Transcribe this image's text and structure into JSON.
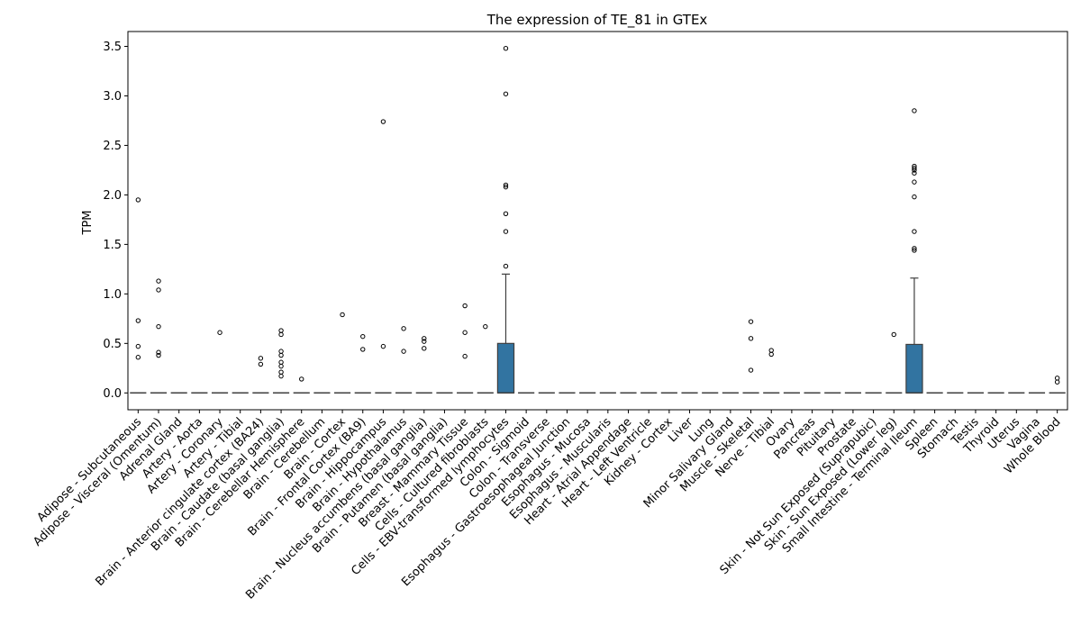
{
  "chart_data": {
    "type": "box",
    "title": "The expression of TE_81 in GTEx",
    "xlabel": "",
    "ylabel": "TPM",
    "ylim": [
      -0.17,
      3.65
    ],
    "yticks": [
      0.0,
      0.5,
      1.0,
      1.5,
      2.0,
      2.5,
      3.0,
      3.5
    ],
    "ytick_labels": [
      "0.0",
      "0.5",
      "1.0",
      "1.5",
      "2.0",
      "2.5",
      "3.0",
      "3.5"
    ],
    "box_color": "#3274a1",
    "categories": [
      "Adipose - Subcutaneous",
      "Adipose - Visceral (Omentum)",
      "Adrenal Gland",
      "Artery - Aorta",
      "Artery - Coronary",
      "Artery - Tibial",
      "Brain - Anterior cingulate cortex (BA24)",
      "Brain - Caudate (basal ganglia)",
      "Brain - Cerebellar Hemisphere",
      "Brain - Cerebellum",
      "Brain - Cortex",
      "Brain - Frontal Cortex (BA9)",
      "Brain - Hippocampus",
      "Brain - Hypothalamus",
      "Brain - Nucleus accumbens (basal ganglia)",
      "Brain - Putamen (basal ganglia)",
      "Breast - Mammary Tissue",
      "Cells - Cultured fibroblasts",
      "Cells - EBV-transformed lymphocytes",
      "Colon - Sigmoid",
      "Colon - Transverse",
      "Esophagus - Gastroesophageal Junction",
      "Esophagus - Mucosa",
      "Esophagus - Muscularis",
      "Heart - Atrial Appendage",
      "Heart - Left Ventricle",
      "Kidney - Cortex",
      "Liver",
      "Lung",
      "Minor Salivary Gland",
      "Muscle - Skeletal",
      "Nerve - Tibial",
      "Ovary",
      "Pancreas",
      "Pituitary",
      "Prostate",
      "Skin - Not Sun Exposed (Suprapubic)",
      "Skin - Sun Exposed (Lower leg)",
      "Small Intestine - Terminal Ileum",
      "Spleen",
      "Stomach",
      "Testis",
      "Thyroid",
      "Uterus",
      "Vagina",
      "Whole Blood"
    ],
    "boxes": [
      {
        "q1": 0,
        "median": 0,
        "q3": 0,
        "whisker_low": 0,
        "whisker_high": 0,
        "outliers": [
          1.95,
          0.73,
          0.47,
          0.36
        ]
      },
      {
        "q1": 0,
        "median": 0,
        "q3": 0,
        "whisker_low": 0,
        "whisker_high": 0,
        "outliers": [
          1.13,
          1.04,
          0.67,
          0.41,
          0.38
        ]
      },
      {
        "q1": 0,
        "median": 0,
        "q3": 0,
        "whisker_low": 0,
        "whisker_high": 0,
        "outliers": []
      },
      {
        "q1": 0,
        "median": 0,
        "q3": 0,
        "whisker_low": 0,
        "whisker_high": 0,
        "outliers": []
      },
      {
        "q1": 0,
        "median": 0,
        "q3": 0,
        "whisker_low": 0,
        "whisker_high": 0,
        "outliers": [
          0.61
        ]
      },
      {
        "q1": 0,
        "median": 0,
        "q3": 0,
        "whisker_low": 0,
        "whisker_high": 0,
        "outliers": []
      },
      {
        "q1": 0,
        "median": 0,
        "q3": 0,
        "whisker_low": 0,
        "whisker_high": 0,
        "outliers": [
          0.35,
          0.29
        ]
      },
      {
        "q1": 0,
        "median": 0,
        "q3": 0,
        "whisker_low": 0,
        "whisker_high": 0,
        "outliers": [
          0.63,
          0.59,
          0.42,
          0.38,
          0.31,
          0.27,
          0.21,
          0.17
        ]
      },
      {
        "q1": 0,
        "median": 0,
        "q3": 0,
        "whisker_low": 0,
        "whisker_high": 0,
        "outliers": [
          0.14
        ]
      },
      {
        "q1": 0,
        "median": 0,
        "q3": 0,
        "whisker_low": 0,
        "whisker_high": 0,
        "outliers": []
      },
      {
        "q1": 0,
        "median": 0,
        "q3": 0,
        "whisker_low": 0,
        "whisker_high": 0,
        "outliers": [
          0.79
        ]
      },
      {
        "q1": 0,
        "median": 0,
        "q3": 0,
        "whisker_low": 0,
        "whisker_high": 0,
        "outliers": [
          0.57,
          0.44
        ]
      },
      {
        "q1": 0,
        "median": 0,
        "q3": 0,
        "whisker_low": 0,
        "whisker_high": 0,
        "outliers": [
          2.74,
          0.47
        ]
      },
      {
        "q1": 0,
        "median": 0,
        "q3": 0,
        "whisker_low": 0,
        "whisker_high": 0,
        "outliers": [
          0.65,
          0.42
        ]
      },
      {
        "q1": 0,
        "median": 0,
        "q3": 0,
        "whisker_low": 0,
        "whisker_high": 0,
        "outliers": [
          0.55,
          0.52,
          0.45
        ]
      },
      {
        "q1": 0,
        "median": 0,
        "q3": 0,
        "whisker_low": 0,
        "whisker_high": 0,
        "outliers": []
      },
      {
        "q1": 0,
        "median": 0,
        "q3": 0,
        "whisker_low": 0,
        "whisker_high": 0,
        "outliers": [
          0.88,
          0.61,
          0.37
        ]
      },
      {
        "q1": 0,
        "median": 0,
        "q3": 0,
        "whisker_low": 0,
        "whisker_high": 0,
        "outliers": [
          0.67
        ]
      },
      {
        "q1": 0,
        "median": 0,
        "q3": 0.5,
        "whisker_low": 0,
        "whisker_high": 1.2,
        "outliers": [
          3.48,
          3.02,
          2.1,
          2.08,
          1.81,
          1.63,
          1.28
        ]
      },
      {
        "q1": 0,
        "median": 0,
        "q3": 0,
        "whisker_low": 0,
        "whisker_high": 0,
        "outliers": []
      },
      {
        "q1": 0,
        "median": 0,
        "q3": 0,
        "whisker_low": 0,
        "whisker_high": 0,
        "outliers": []
      },
      {
        "q1": 0,
        "median": 0,
        "q3": 0,
        "whisker_low": 0,
        "whisker_high": 0,
        "outliers": []
      },
      {
        "q1": 0,
        "median": 0,
        "q3": 0,
        "whisker_low": 0,
        "whisker_high": 0,
        "outliers": []
      },
      {
        "q1": 0,
        "median": 0,
        "q3": 0,
        "whisker_low": 0,
        "whisker_high": 0,
        "outliers": []
      },
      {
        "q1": 0,
        "median": 0,
        "q3": 0,
        "whisker_low": 0,
        "whisker_high": 0,
        "outliers": []
      },
      {
        "q1": 0,
        "median": 0,
        "q3": 0,
        "whisker_low": 0,
        "whisker_high": 0,
        "outliers": []
      },
      {
        "q1": 0,
        "median": 0,
        "q3": 0,
        "whisker_low": 0,
        "whisker_high": 0,
        "outliers": []
      },
      {
        "q1": 0,
        "median": 0,
        "q3": 0,
        "whisker_low": 0,
        "whisker_high": 0,
        "outliers": []
      },
      {
        "q1": 0,
        "median": 0,
        "q3": 0,
        "whisker_low": 0,
        "whisker_high": 0,
        "outliers": []
      },
      {
        "q1": 0,
        "median": 0,
        "q3": 0,
        "whisker_low": 0,
        "whisker_high": 0,
        "outliers": []
      },
      {
        "q1": 0,
        "median": 0,
        "q3": 0,
        "whisker_low": 0,
        "whisker_high": 0,
        "outliers": [
          0.72,
          0.55,
          0.23
        ]
      },
      {
        "q1": 0,
        "median": 0,
        "q3": 0,
        "whisker_low": 0,
        "whisker_high": 0,
        "outliers": [
          0.43,
          0.39
        ]
      },
      {
        "q1": 0,
        "median": 0,
        "q3": 0,
        "whisker_low": 0,
        "whisker_high": 0,
        "outliers": []
      },
      {
        "q1": 0,
        "median": 0,
        "q3": 0,
        "whisker_low": 0,
        "whisker_high": 0,
        "outliers": []
      },
      {
        "q1": 0,
        "median": 0,
        "q3": 0,
        "whisker_low": 0,
        "whisker_high": 0,
        "outliers": []
      },
      {
        "q1": 0,
        "median": 0,
        "q3": 0,
        "whisker_low": 0,
        "whisker_high": 0,
        "outliers": []
      },
      {
        "q1": 0,
        "median": 0,
        "q3": 0,
        "whisker_low": 0,
        "whisker_high": 0,
        "outliers": []
      },
      {
        "q1": 0,
        "median": 0,
        "q3": 0,
        "whisker_low": 0,
        "whisker_high": 0,
        "outliers": [
          0.59
        ]
      },
      {
        "q1": 0,
        "median": 0,
        "q3": 0.49,
        "whisker_low": 0,
        "whisker_high": 1.16,
        "outliers": [
          2.85,
          2.29,
          2.27,
          2.25,
          2.22,
          2.13,
          1.98,
          1.63,
          1.46,
          1.44
        ]
      },
      {
        "q1": 0,
        "median": 0,
        "q3": 0,
        "whisker_low": 0,
        "whisker_high": 0,
        "outliers": []
      },
      {
        "q1": 0,
        "median": 0,
        "q3": 0,
        "whisker_low": 0,
        "whisker_high": 0,
        "outliers": []
      },
      {
        "q1": 0,
        "median": 0,
        "q3": 0,
        "whisker_low": 0,
        "whisker_high": 0,
        "outliers": []
      },
      {
        "q1": 0,
        "median": 0,
        "q3": 0,
        "whisker_low": 0,
        "whisker_high": 0,
        "outliers": []
      },
      {
        "q1": 0,
        "median": 0,
        "q3": 0,
        "whisker_low": 0,
        "whisker_high": 0,
        "outliers": []
      },
      {
        "q1": 0,
        "median": 0,
        "q3": 0,
        "whisker_low": 0,
        "whisker_high": 0,
        "outliers": []
      },
      {
        "q1": 0,
        "median": 0,
        "q3": 0,
        "whisker_low": 0,
        "whisker_high": 0,
        "outliers": [
          0.15,
          0.11
        ]
      }
    ]
  }
}
